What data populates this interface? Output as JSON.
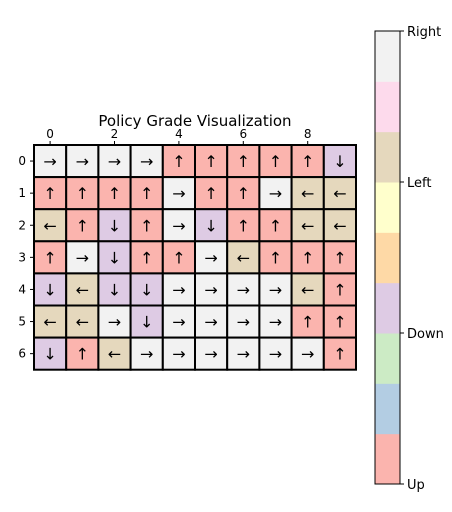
{
  "chart_data": {
    "type": "heatmap",
    "title": "Policy Grade Visualization",
    "rows": 7,
    "cols": 10,
    "x_ticks": [
      0,
      2,
      4,
      6,
      8
    ],
    "y_ticks": [
      0,
      1,
      2,
      3,
      4,
      5,
      6
    ],
    "action_symbols": {
      "Up": "↑",
      "Down": "↓",
      "Left": "←",
      "Right": "→"
    },
    "grid": [
      [
        "Right",
        "Right",
        "Right",
        "Right",
        "Up",
        "Up",
        "Up",
        "Up",
        "Up",
        "Down"
      ],
      [
        "Up",
        "Up",
        "Up",
        "Up",
        "Right",
        "Up",
        "Up",
        "Right",
        "Left",
        "Left"
      ],
      [
        "Left",
        "Up",
        "Down",
        "Up",
        "Right",
        "Down",
        "Up",
        "Up",
        "Left",
        "Left"
      ],
      [
        "Up",
        "Right",
        "Down",
        "Up",
        "Up",
        "Right",
        "Left",
        "Up",
        "Up",
        "Up"
      ],
      [
        "Down",
        "Left",
        "Down",
        "Down",
        "Right",
        "Right",
        "Right",
        "Right",
        "Left",
        "Up"
      ],
      [
        "Left",
        "Left",
        "Right",
        "Down",
        "Right",
        "Right",
        "Right",
        "Right",
        "Up",
        "Up"
      ],
      [
        "Down",
        "Up",
        "Left",
        "Right",
        "Right",
        "Right",
        "Right",
        "Right",
        "Right",
        "Up"
      ]
    ],
    "action_colors": {
      "Up": "#fbb4ae",
      "Down": "#decbe4",
      "Left": "#e5d8bd",
      "Right": "#f2f2f2"
    },
    "colorbar": {
      "colormap": "Pastel1",
      "band_colors_bottom_to_top": [
        "#fbb4ae",
        "#b3cde3",
        "#ccebc5",
        "#decbe4",
        "#fed9a6",
        "#ffffcc",
        "#e5d8bd",
        "#fddaec",
        "#f2f2f2"
      ],
      "tick_labels": [
        "Up",
        "Down",
        "Left",
        "Right"
      ]
    }
  }
}
